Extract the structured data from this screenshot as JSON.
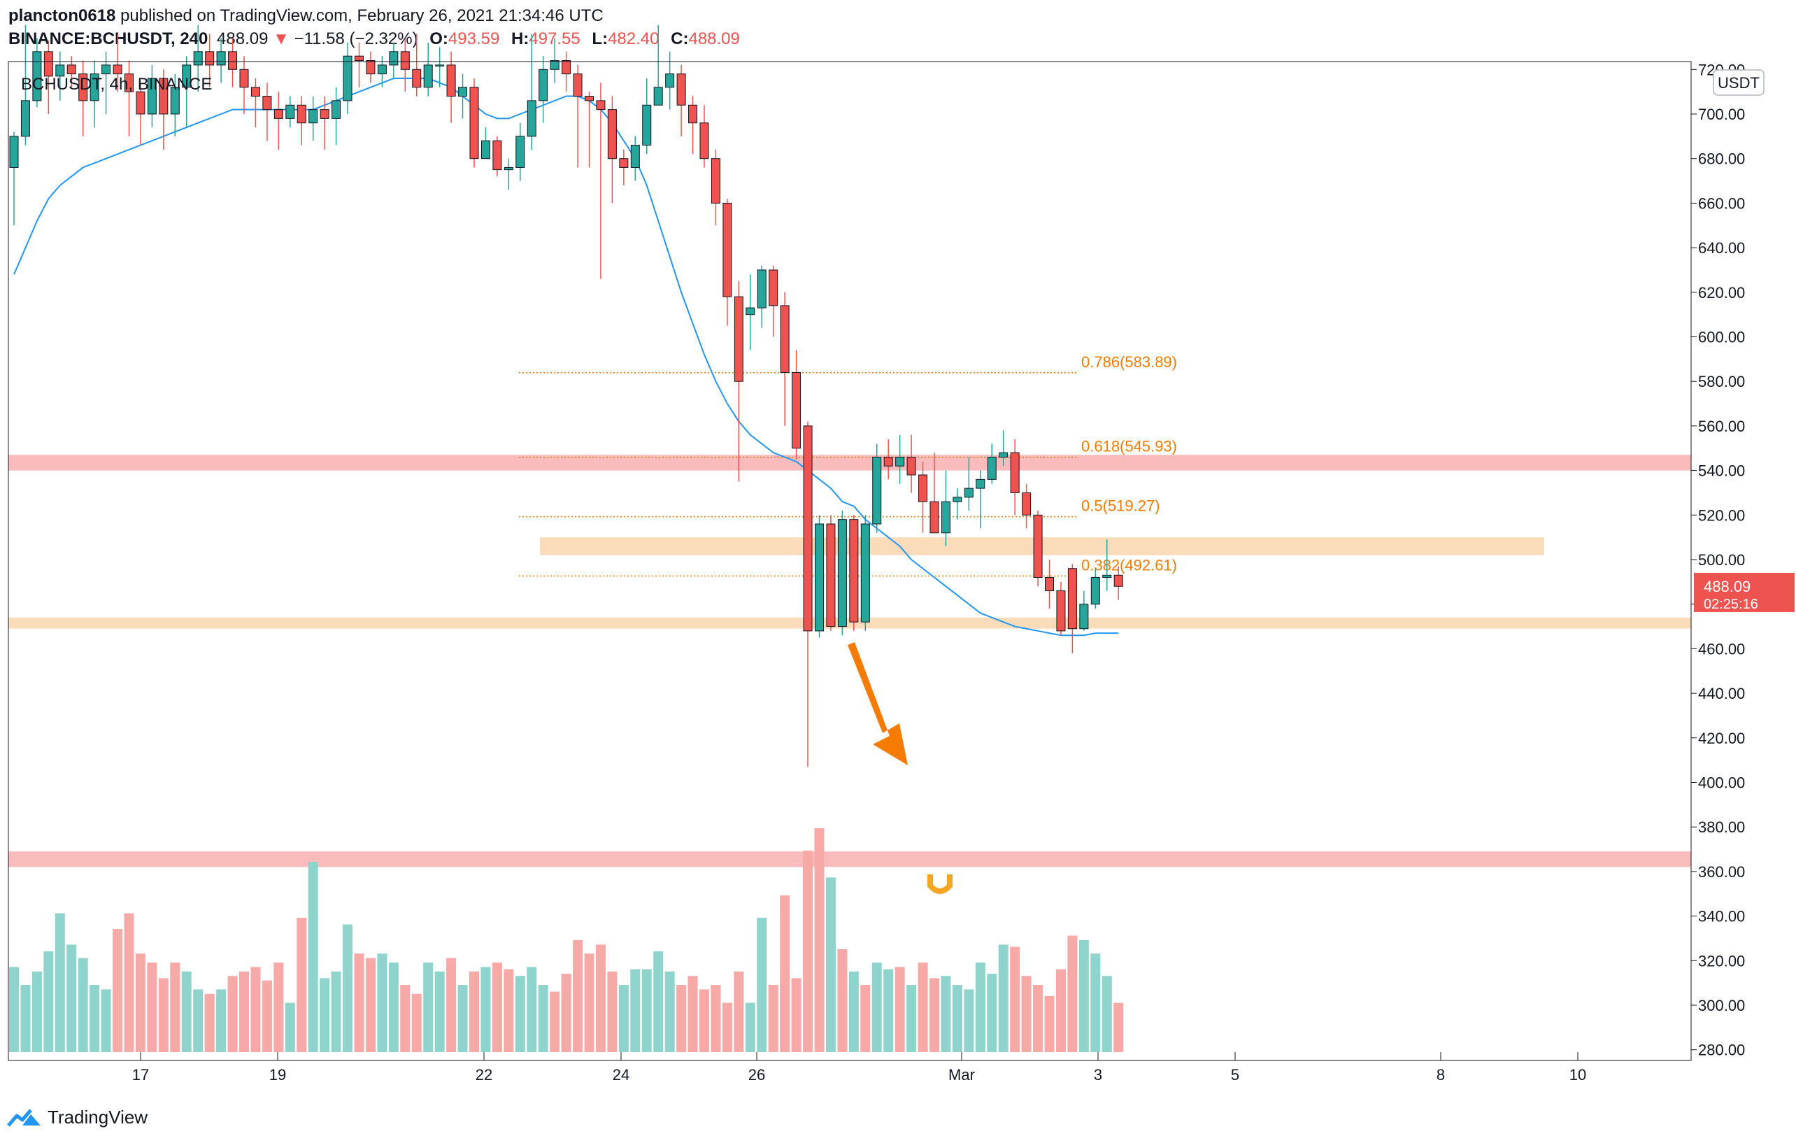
{
  "header": {
    "author": "plancton0618",
    "published_text": "published on TradingView.com, February 26, 2021 21:34:46 UTC",
    "symbol": "BINANCE:BCHUSDT, 240",
    "last": "488.09",
    "change_arrow": "▼",
    "change": "−11.58 (−2.32%)",
    "o_label": "O:",
    "o_value": "493.59",
    "h_label": "H:",
    "h_value": "497.55",
    "l_label": "L:",
    "l_value": "482.40",
    "c_label": "C:",
    "c_value": "488.09"
  },
  "legend_text": "BCHUSDT, 4h, BINANCE",
  "currency_badge": "USDT",
  "price_badge": {
    "price": "488.09",
    "countdown": "02:25:16"
  },
  "footer": {
    "brand": "TradingView"
  },
  "colors": {
    "up": "#26a69a",
    "down": "#ef5350",
    "ema": "#2196f3",
    "fib": "#f57c00",
    "red_zone": "#f8b4b4",
    "orange_zone": "#fad8b4",
    "arrow": "#f57c00",
    "vol_up": "#8fd3cd",
    "vol_down": "#f7a9a8"
  },
  "chart_data": {
    "type": "candlestick",
    "timeframe": "4h",
    "y_axis": {
      "ticks": [
        "280.00",
        "300.00",
        "320.00",
        "340.00",
        "360.00",
        "380.00",
        "400.00",
        "420.00",
        "440.00",
        "460.00",
        "480.00",
        "500.00",
        "520.00",
        "540.00",
        "560.00",
        "580.00",
        "600.00",
        "620.00",
        "640.00",
        "660.00",
        "680.00",
        "700.00",
        "720.00"
      ],
      "range": [
        275,
        725
      ]
    },
    "x_axis": {
      "ticks": [
        "17",
        "19",
        "22",
        "24",
        "26",
        "Mar",
        "3",
        "5",
        "8",
        "10"
      ]
    },
    "fib_levels": [
      {
        "label": "0.786(583.89)",
        "price": 583.89
      },
      {
        "label": "0.618(545.93)",
        "price": 545.93
      },
      {
        "label": "0.5(519.27)",
        "price": 519.27
      },
      {
        "label": "0.382(492.61)",
        "price": 492.61
      }
    ],
    "zones": [
      {
        "kind": "resistance",
        "low": 540,
        "high": 547
      },
      {
        "kind": "supply",
        "low": 502,
        "high": 510
      },
      {
        "kind": "support",
        "low": 469,
        "high": 474
      },
      {
        "kind": "target",
        "low": 362,
        "high": 369
      }
    ],
    "candles": [
      [
        676,
        690,
        650,
        692
      ],
      [
        690,
        706,
        686,
        740
      ],
      [
        706,
        728,
        703,
        734
      ],
      [
        728,
        717,
        700,
        733
      ],
      [
        717,
        722,
        706,
        728
      ],
      [
        722,
        718,
        712,
        726
      ],
      [
        718,
        706,
        690,
        724
      ],
      [
        706,
        718,
        694,
        724
      ],
      [
        718,
        722,
        700,
        728
      ],
      [
        722,
        718,
        710,
        736
      ],
      [
        718,
        710,
        690,
        724
      ],
      [
        710,
        700,
        686,
        714
      ],
      [
        700,
        716,
        694,
        722
      ],
      [
        716,
        700,
        684,
        720
      ],
      [
        700,
        712,
        690,
        718
      ],
      [
        712,
        722,
        694,
        726
      ],
      [
        722,
        728,
        710,
        740
      ],
      [
        728,
        722,
        712,
        736
      ],
      [
        722,
        728,
        714,
        734
      ],
      [
        728,
        720,
        712,
        734
      ],
      [
        720,
        712,
        700,
        726
      ],
      [
        712,
        708,
        694,
        716
      ],
      [
        708,
        702,
        688,
        714
      ],
      [
        702,
        698,
        684,
        710
      ],
      [
        698,
        704,
        694,
        708
      ],
      [
        704,
        696,
        686,
        708
      ],
      [
        696,
        702,
        688,
        708
      ],
      [
        702,
        698,
        684,
        708
      ],
      [
        698,
        706,
        686,
        712
      ],
      [
        706,
        726,
        700,
        732
      ],
      [
        726,
        724,
        712,
        732
      ],
      [
        724,
        718,
        714,
        728
      ],
      [
        718,
        722,
        712,
        726
      ],
      [
        722,
        728,
        716,
        732
      ],
      [
        728,
        720,
        710,
        734
      ],
      [
        720,
        712,
        708,
        736
      ],
      [
        712,
        722,
        708,
        732
      ],
      [
        722,
        722,
        712,
        730
      ],
      [
        722,
        708,
        696,
        728
      ],
      [
        708,
        712,
        698,
        718
      ],
      [
        712,
        680,
        676,
        716
      ],
      [
        680,
        688,
        680,
        694
      ],
      [
        688,
        675,
        672,
        690
      ],
      [
        675,
        676,
        666,
        680
      ],
      [
        676,
        690,
        670,
        696
      ],
      [
        690,
        706,
        684,
        736
      ],
      [
        706,
        720,
        696,
        726
      ],
      [
        720,
        724,
        714,
        734
      ],
      [
        724,
        718,
        710,
        728
      ],
      [
        718,
        708,
        676,
        722
      ],
      [
        708,
        706,
        676,
        710
      ],
      [
        706,
        702,
        626,
        714
      ],
      [
        702,
        680,
        660,
        708
      ],
      [
        680,
        676,
        668,
        684
      ],
      [
        676,
        686,
        670,
        690
      ],
      [
        686,
        704,
        682,
        716
      ],
      [
        704,
        712,
        704,
        740
      ],
      [
        712,
        718,
        702,
        728
      ],
      [
        718,
        704,
        690,
        722
      ],
      [
        704,
        696,
        682,
        708
      ],
      [
        696,
        680,
        676,
        704
      ],
      [
        680,
        660,
        650,
        684
      ],
      [
        660,
        618,
        605,
        662
      ],
      [
        618,
        580,
        535,
        625
      ],
      [
        610,
        613,
        594,
        628
      ],
      [
        613,
        630,
        604,
        632
      ],
      [
        630,
        614,
        600,
        632
      ],
      [
        614,
        584,
        560,
        620
      ],
      [
        584,
        550,
        545,
        594
      ],
      [
        560,
        468,
        407,
        562
      ],
      [
        468,
        516,
        465,
        520
      ],
      [
        516,
        470,
        468,
        520
      ],
      [
        470,
        518,
        466,
        522
      ],
      [
        518,
        472,
        468,
        520
      ],
      [
        472,
        516,
        468,
        520
      ],
      [
        516,
        546,
        512,
        552
      ],
      [
        546,
        542,
        536,
        554
      ],
      [
        542,
        546,
        534,
        556
      ],
      [
        546,
        538,
        530,
        556
      ],
      [
        538,
        526,
        512,
        544
      ],
      [
        526,
        512,
        512,
        548
      ],
      [
        512,
        526,
        506,
        540
      ],
      [
        526,
        528,
        518,
        532
      ],
      [
        528,
        532,
        522,
        546
      ],
      [
        532,
        536,
        514,
        540
      ],
      [
        536,
        546,
        534,
        552
      ],
      [
        546,
        548,
        542,
        558
      ],
      [
        548,
        530,
        520,
        554
      ],
      [
        530,
        520,
        514,
        534
      ],
      [
        520,
        492,
        488,
        522
      ],
      [
        492,
        486,
        478,
        500
      ],
      [
        486,
        468,
        466,
        490
      ],
      [
        496,
        469,
        458,
        498
      ],
      [
        469,
        480,
        468,
        486
      ],
      [
        480,
        492,
        478,
        496
      ],
      [
        492,
        493,
        486,
        509
      ],
      [
        493,
        488,
        482,
        497
      ]
    ],
    "ema": [
      628,
      640,
      652,
      662,
      668,
      672,
      676,
      678,
      680,
      682,
      684,
      686,
      688,
      690,
      692,
      694,
      696,
      698,
      700,
      702,
      702,
      702,
      702,
      702,
      702,
      702,
      702,
      704,
      706,
      708,
      710,
      712,
      714,
      716,
      716,
      716,
      716,
      714,
      712,
      708,
      704,
      700,
      698,
      698,
      700,
      702,
      704,
      706,
      708,
      708,
      706,
      702,
      696,
      688,
      680,
      668,
      652,
      636,
      620,
      606,
      592,
      580,
      570,
      562,
      556,
      552,
      548,
      546,
      544,
      540,
      536,
      532,
      526,
      524,
      518,
      514,
      510,
      506,
      500,
      496,
      492,
      488,
      484,
      480,
      476,
      474,
      472,
      470,
      469,
      468,
      467,
      466,
      466,
      466,
      467,
      467,
      467
    ],
    "volume": [
      38,
      30,
      36,
      45,
      62,
      48,
      42,
      30,
      28,
      55,
      62,
      44,
      40,
      33,
      40,
      36,
      28,
      26,
      28,
      34,
      36,
      38,
      32,
      40,
      22,
      60,
      85,
      33,
      36,
      57,
      44,
      42,
      44,
      40,
      30,
      26,
      40,
      36,
      42,
      30,
      36,
      38,
      40,
      37,
      34,
      38,
      30,
      27,
      35,
      50,
      44,
      48,
      36,
      30,
      37,
      37,
      45,
      36,
      30,
      34,
      28,
      30,
      22,
      36,
      22,
      60,
      30,
      70,
      33,
      90,
      100,
      78,
      46,
      36,
      30,
      40,
      37,
      38,
      30,
      40,
      33,
      34,
      30,
      28,
      40,
      35,
      48,
      47,
      34,
      30,
      25,
      37,
      52,
      50,
      44,
      34,
      22
    ],
    "volume_dir": [
      "up",
      "up",
      "up",
      "up",
      "up",
      "up",
      "up",
      "up",
      "up",
      "down",
      "down",
      "down",
      "down",
      "down",
      "down",
      "up",
      "up",
      "down",
      "up",
      "down",
      "down",
      "down",
      "down",
      "down",
      "up",
      "down",
      "up",
      "up",
      "up",
      "up",
      "down",
      "down",
      "up",
      "up",
      "down",
      "down",
      "up",
      "up",
      "down",
      "up",
      "down",
      "up",
      "down",
      "down",
      "up",
      "up",
      "up",
      "down",
      "down",
      "down",
      "down",
      "down",
      "down",
      "up",
      "up",
      "up",
      "up",
      "up",
      "down",
      "down",
      "down",
      "down",
      "down",
      "down",
      "up",
      "up",
      "down",
      "down",
      "down",
      "down",
      "down",
      "up",
      "down",
      "up",
      "down",
      "up",
      "up",
      "down",
      "up",
      "down",
      "down",
      "up",
      "up",
      "up",
      "up",
      "up",
      "up",
      "down",
      "down",
      "down",
      "down",
      "down",
      "down",
      "up",
      "up",
      "up",
      "down"
    ],
    "annotations": [
      {
        "type": "arrow",
        "direction": "down"
      }
    ]
  }
}
